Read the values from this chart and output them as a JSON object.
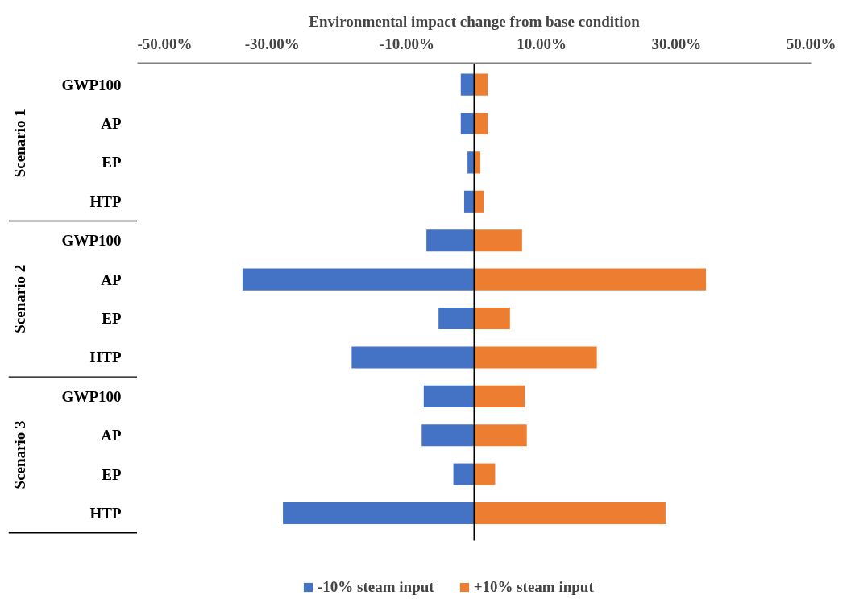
{
  "chart_data": {
    "type": "bar",
    "orientation": "horizontal",
    "xlabel": "Environmental impact change from base condition",
    "categories": [
      "GWP100",
      "AP",
      "EP",
      "HTP",
      "GWP100",
      "AP",
      "EP",
      "HTP",
      "GWP100",
      "AP",
      "EP",
      "HTP"
    ],
    "annotations": [
      "Scenario 1",
      "Scenario 2",
      "Scenario 3"
    ],
    "series": [
      {
        "name": "-10% steam input",
        "color": "#4472c4",
        "values": [
          -2.0,
          -2.0,
          -1.0,
          -1.5,
          -7.1,
          -34.4,
          -5.3,
          -18.2,
          -7.5,
          -7.8,
          -3.1,
          -28.4
        ]
      },
      {
        "name": "+10% steam input",
        "color": "#ed7d31",
        "values": [
          2.0,
          2.0,
          0.9,
          1.4,
          7.1,
          34.4,
          5.3,
          18.2,
          7.5,
          7.8,
          3.1,
          28.4
        ]
      }
    ],
    "xlim": [
      -50,
      50
    ],
    "xticks": [
      {
        "value": -50,
        "label": "-50.00%"
      },
      {
        "value": -30,
        "label": "-30.00%"
      },
      {
        "value": -10,
        "label": "-10.00%"
      },
      {
        "value": 10,
        "label": "10.00%"
      },
      {
        "value": 30,
        "label": "30.00%"
      },
      {
        "value": 50,
        "label": "50.00%"
      }
    ],
    "ref_lines": [
      {
        "axis": "x",
        "value": 0,
        "label": null,
        "color": "#000000"
      }
    ],
    "stacked": true,
    "grid": false,
    "legend": "bottom"
  }
}
